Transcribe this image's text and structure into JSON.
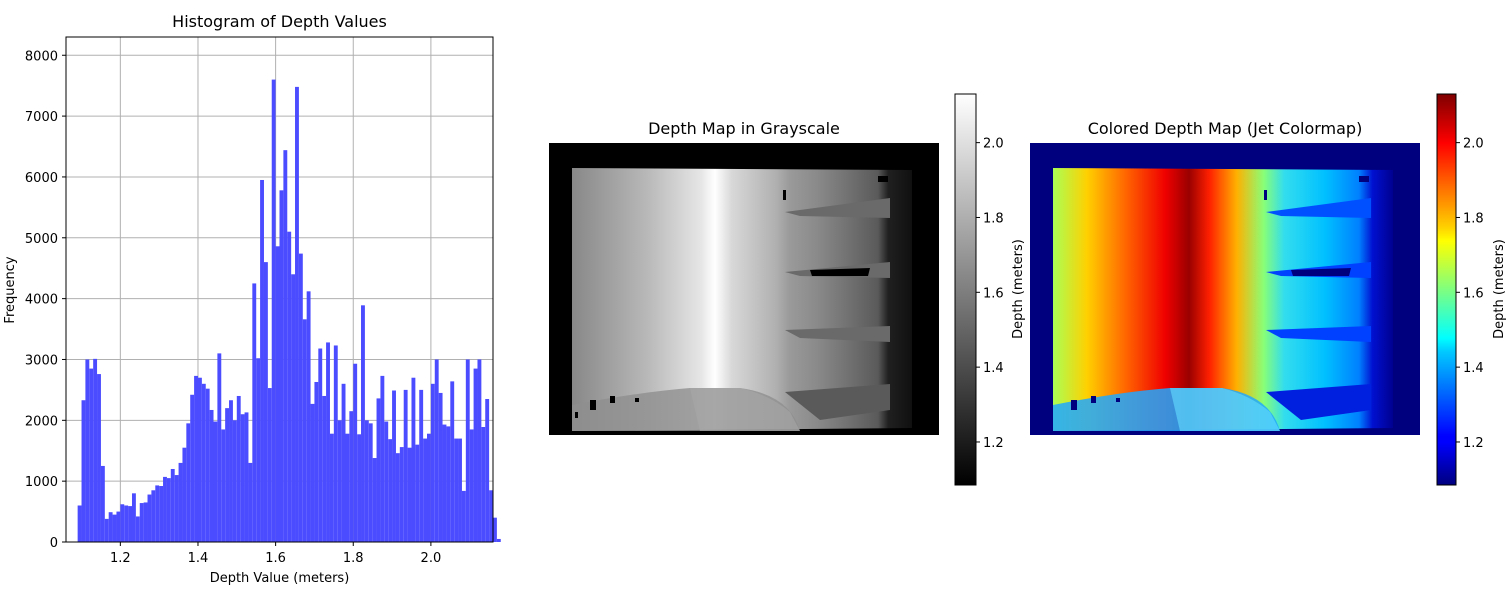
{
  "charts_meta": {
    "colors": {
      "histogram_bar": "#4b4bff",
      "grid": "#b0b0b0",
      "jet_low": "#00007f",
      "jet_high": "#7f0000",
      "gray_low": "#000000",
      "gray_high": "#ffffff"
    }
  },
  "chart_data": [
    {
      "type": "bar",
      "title": "Histogram of Depth Values",
      "xlabel": "Depth Value (meters)",
      "ylabel": "Frequency",
      "xlim": [
        1.06,
        2.16
      ],
      "ylim": [
        0,
        8300
      ],
      "xticks": [
        1.2,
        1.4,
        1.6,
        1.8,
        2.0
      ],
      "xtick_labels": [
        "1.2",
        "1.4",
        "1.6",
        "1.8",
        "2.0"
      ],
      "yticks": [
        0,
        1000,
        2000,
        3000,
        4000,
        5000,
        6000,
        7000,
        8000
      ],
      "ytick_labels": [
        "0",
        "1000",
        "2000",
        "3000",
        "4000",
        "5000",
        "6000",
        "7000",
        "8000"
      ],
      "grid": true,
      "bin_start": 1.09,
      "bin_width": 0.01,
      "values": [
        600,
        2330,
        3000,
        2850,
        3010,
        2760,
        1250,
        380,
        490,
        450,
        500,
        620,
        600,
        590,
        800,
        420,
        640,
        650,
        780,
        850,
        930,
        920,
        1070,
        1050,
        1200,
        1100,
        1300,
        1550,
        1950,
        2420,
        2730,
        2700,
        2600,
        2520,
        2170,
        1980,
        3100,
        1850,
        2200,
        2330,
        2000,
        2400,
        2100,
        2130,
        1300,
        4250,
        3020,
        5950,
        4600,
        2530,
        7600,
        4860,
        5780,
        6440,
        5100,
        4400,
        7480,
        4740,
        3660,
        4120,
        2270,
        2630,
        3180,
        2400,
        3280,
        1780,
        3230,
        2000,
        2600,
        1780,
        2150,
        2930,
        1770,
        3890,
        2000,
        1950,
        1380,
        2360,
        2730,
        1980,
        1690,
        2490,
        1460,
        1560,
        2500,
        1550,
        2700,
        1600,
        2500,
        1700,
        1780,
        2600,
        3000,
        2450,
        1930,
        1900,
        2640,
        1700,
        1700,
        840,
        3000,
        1850,
        2850,
        3000,
        1890,
        2350,
        850,
        400,
        50
      ]
    },
    {
      "type": "heatmap",
      "title": "Depth Map in Grayscale",
      "colormap": "gray",
      "colorbar_label": "Depth (meters)",
      "colorbar_range": [
        1.085,
        2.13
      ],
      "colorbar_ticks": [
        1.2,
        1.4,
        1.6,
        1.8,
        2.0
      ],
      "colorbar_tick_labels": [
        "1.2",
        "1.4",
        "1.6",
        "1.8",
        "2.0"
      ]
    },
    {
      "type": "heatmap",
      "title": "Colored Depth Map (Jet Colormap)",
      "colormap": "jet",
      "colorbar_label": "Depth (meters)",
      "colorbar_range": [
        1.085,
        2.13
      ],
      "colorbar_ticks": [
        1.2,
        1.4,
        1.6,
        1.8,
        2.0
      ],
      "colorbar_tick_labels": [
        "1.2",
        "1.4",
        "1.6",
        "1.8",
        "2.0"
      ]
    }
  ]
}
